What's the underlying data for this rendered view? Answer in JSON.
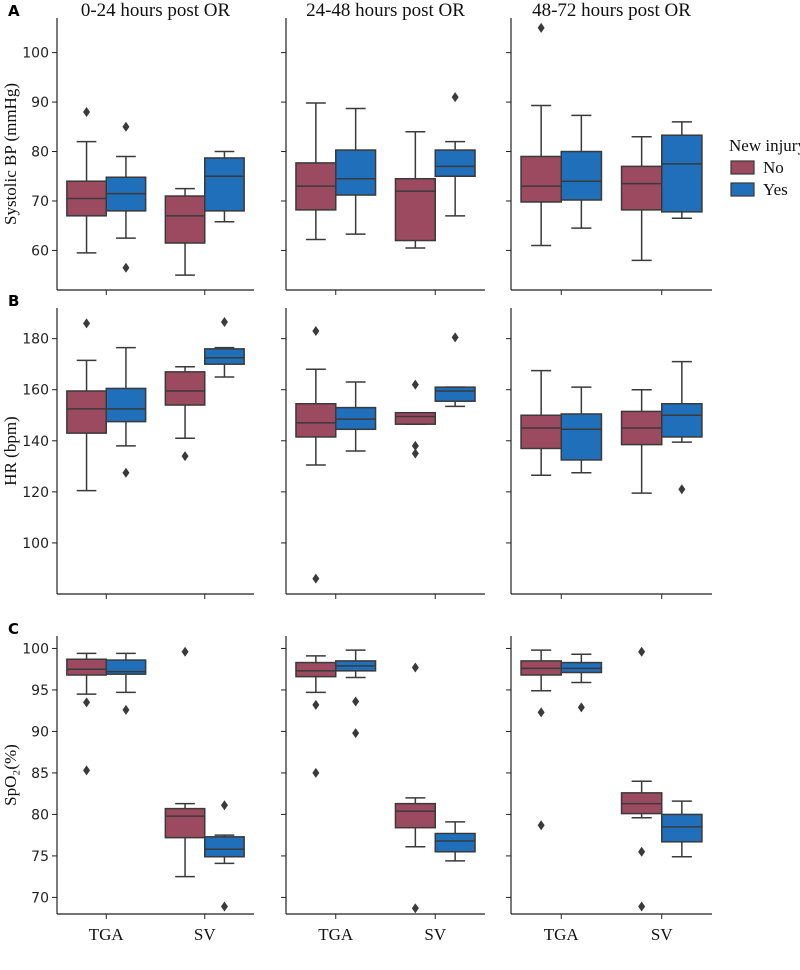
{
  "chart_data": {
    "type": "box",
    "column_titles": [
      "0-24 hours post OR",
      "24-48 hours post OR",
      "48-72 hours post OR"
    ],
    "categories": [
      "TGA",
      "SV"
    ],
    "legend": {
      "title": "New injury",
      "entries": [
        "No",
        "Yes"
      ],
      "placement": "right of row A"
    },
    "colors": {
      "No": "#9b4a5f",
      "Yes": "#1f6fba",
      "outline": "#3a3a3a"
    },
    "rows": [
      {
        "letter": "A",
        "ylabel": "Systolic BP (mmHg)",
        "ylim": [
          52,
          107
        ],
        "yticks": [
          60,
          70,
          80,
          90,
          100
        ],
        "panels": [
          {
            "TGA": {
              "No": {
                "q1": 67,
                "med": 70.5,
                "q3": 74,
                "wlo": 59.5,
                "whi": 82,
                "out": [
                  88
                ]
              },
              "Yes": {
                "q1": 68,
                "med": 71.5,
                "q3": 74.8,
                "wlo": 62.5,
                "whi": 79,
                "out": [
                  85,
                  56.5
                ]
              }
            },
            "SV": {
              "No": {
                "q1": 61.5,
                "med": 67,
                "q3": 71,
                "wlo": 55,
                "whi": 72.5,
                "out": []
              },
              "Yes": {
                "q1": 68,
                "med": 75,
                "q3": 78.7,
                "wlo": 65.8,
                "whi": 80,
                "out": []
              }
            }
          },
          {
            "TGA": {
              "No": {
                "q1": 68.2,
                "med": 73,
                "q3": 77.7,
                "wlo": 62.2,
                "whi": 89.8,
                "out": []
              },
              "Yes": {
                "q1": 71.2,
                "med": 74.5,
                "q3": 80.3,
                "wlo": 63.3,
                "whi": 88.7,
                "out": []
              }
            },
            "SV": {
              "No": {
                "q1": 62,
                "med": 72,
                "q3": 74.5,
                "wlo": 60.5,
                "whi": 84,
                "out": []
              },
              "Yes": {
                "q1": 75,
                "med": 77,
                "q3": 80.3,
                "wlo": 67,
                "whi": 82,
                "out": [
                  91
                ]
              }
            }
          },
          {
            "TGA": {
              "No": {
                "q1": 69.8,
                "med": 73,
                "q3": 79,
                "wlo": 61,
                "whi": 89.3,
                "out": [
                  105
                ]
              },
              "Yes": {
                "q1": 70.2,
                "med": 74,
                "q3": 80,
                "wlo": 64.5,
                "whi": 87.3,
                "out": []
              }
            },
            "SV": {
              "No": {
                "q1": 68.2,
                "med": 73.5,
                "q3": 77,
                "wlo": 58,
                "whi": 83,
                "out": []
              },
              "Yes": {
                "q1": 67.8,
                "med": 77.5,
                "q3": 83.3,
                "wlo": 66.5,
                "whi": 86,
                "out": []
              }
            }
          }
        ]
      },
      {
        "letter": "B",
        "ylabel": "HR (bpm)",
        "ylim": [
          80,
          192
        ],
        "yticks": [
          100,
          120,
          140,
          160,
          180
        ],
        "panels": [
          {
            "TGA": {
              "No": {
                "q1": 143,
                "med": 152.5,
                "q3": 159.5,
                "wlo": 120.5,
                "whi": 171.5,
                "out": [
                  186
                ]
              },
              "Yes": {
                "q1": 147.5,
                "med": 152.5,
                "q3": 160.5,
                "wlo": 138,
                "whi": 176.5,
                "out": [
                  127.5
                ]
              }
            },
            "SV": {
              "No": {
                "q1": 154,
                "med": 159.5,
                "q3": 167,
                "wlo": 141,
                "whi": 169,
                "out": [
                  134
                ]
              },
              "Yes": {
                "q1": 170,
                "med": 172.5,
                "q3": 176,
                "wlo": 165,
                "whi": 176.5,
                "out": [
                  186.5
                ]
              }
            }
          },
          {
            "TGA": {
              "No": {
                "q1": 141.5,
                "med": 147,
                "q3": 154.5,
                "wlo": 130.5,
                "whi": 168,
                "out": [
                  183,
                  86
                ]
              },
              "Yes": {
                "q1": 144.5,
                "med": 148.5,
                "q3": 153,
                "wlo": 136,
                "whi": 163,
                "out": []
              }
            },
            "SV": {
              "No": {
                "q1": 146.5,
                "med": 149.5,
                "q3": 151,
                "wlo": 146.5,
                "whi": 151,
                "out": [
                  162,
                  138,
                  135
                ]
              },
              "Yes": {
                "q1": 155.5,
                "med": 159.5,
                "q3": 161,
                "wlo": 153.5,
                "whi": 161,
                "out": [
                  180.5
                ]
              }
            }
          },
          {
            "TGA": {
              "No": {
                "q1": 137,
                "med": 145,
                "q3": 150,
                "wlo": 126.5,
                "whi": 167.5,
                "out": []
              },
              "Yes": {
                "q1": 132.5,
                "med": 144.5,
                "q3": 150.5,
                "wlo": 127.5,
                "whi": 161,
                "out": []
              }
            },
            "SV": {
              "No": {
                "q1": 138.5,
                "med": 145,
                "q3": 151.5,
                "wlo": 119.5,
                "whi": 160,
                "out": []
              },
              "Yes": {
                "q1": 141.5,
                "med": 150,
                "q3": 154.5,
                "wlo": 139.5,
                "whi": 171,
                "out": [
                  121
                ]
              }
            }
          }
        ]
      },
      {
        "letter": "C",
        "ylabel": "SpO₂(%)",
        "ylim": [
          68,
          101.5
        ],
        "yticks": [
          70,
          75,
          80,
          85,
          90,
          95,
          100
        ],
        "panels": [
          {
            "TGA": {
              "No": {
                "q1": 96.8,
                "med": 97.5,
                "q3": 98.7,
                "wlo": 94.5,
                "whi": 99.4,
                "out": [
                  93.5,
                  85.3
                ]
              },
              "Yes": {
                "q1": 96.9,
                "med": 97.2,
                "q3": 98.6,
                "wlo": 94.7,
                "whi": 99.4,
                "out": [
                  92.6
                ]
              }
            },
            "SV": {
              "No": {
                "q1": 77.2,
                "med": 79.8,
                "q3": 80.7,
                "wlo": 72.5,
                "whi": 81.3,
                "out": [
                  99.6
                ]
              },
              "Yes": {
                "q1": 74.9,
                "med": 75.8,
                "q3": 77.3,
                "wlo": 74.1,
                "whi": 77.5,
                "out": [
                  81.1,
                  68.9
                ]
              }
            }
          },
          {
            "TGA": {
              "No": {
                "q1": 96.6,
                "med": 97.3,
                "q3": 98.3,
                "wlo": 94.7,
                "whi": 99.1,
                "out": [
                  93.2,
                  85
                ]
              },
              "Yes": {
                "q1": 97.3,
                "med": 97.9,
                "q3": 98.5,
                "wlo": 96.5,
                "whi": 99.8,
                "out": [
                  93.6,
                  89.8
                ]
              }
            },
            "SV": {
              "No": {
                "q1": 78.4,
                "med": 80.4,
                "q3": 81.3,
                "wlo": 76.1,
                "whi": 82,
                "out": [
                  97.7,
                  68.7
                ]
              },
              "Yes": {
                "q1": 75.5,
                "med": 76.8,
                "q3": 77.7,
                "wlo": 74.4,
                "whi": 79.1,
                "out": []
              }
            }
          },
          {
            "TGA": {
              "No": {
                "q1": 96.8,
                "med": 97.6,
                "q3": 98.5,
                "wlo": 94.9,
                "whi": 99.8,
                "out": [
                  92.3,
                  78.7
                ]
              },
              "Yes": {
                "q1": 97.1,
                "med": 97.6,
                "q3": 98.3,
                "wlo": 95.9,
                "whi": 99.3,
                "out": [
                  92.9
                ]
              }
            },
            "SV": {
              "No": {
                "q1": 80.1,
                "med": 81.3,
                "q3": 82.6,
                "wlo": 79.6,
                "whi": 84,
                "out": [
                  99.6,
                  75.5,
                  68.9
                ]
              },
              "Yes": {
                "q1": 76.7,
                "med": 78.5,
                "q3": 80,
                "wlo": 74.9,
                "whi": 81.6,
                "out": []
              }
            }
          }
        ]
      }
    ]
  }
}
